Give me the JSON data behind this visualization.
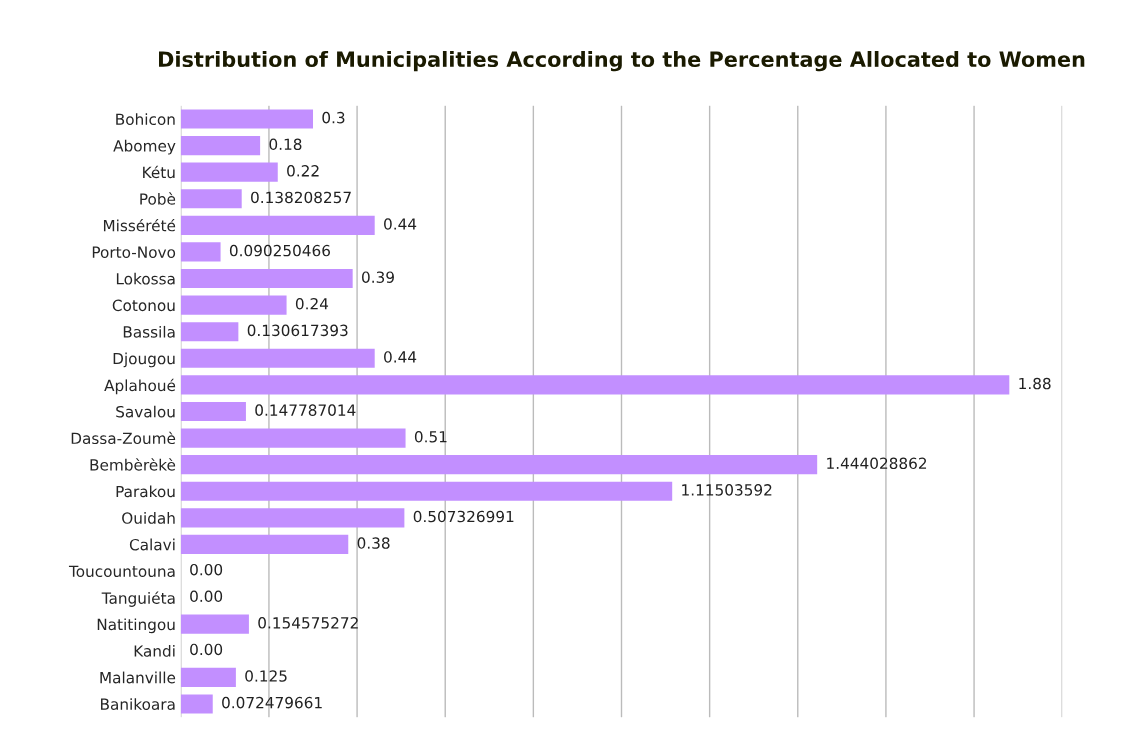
{
  "chart_data": {
    "type": "bar",
    "orientation": "horizontal",
    "title": "Distribution of Municipalities According to the Percentage Allocated to Women",
    "categories": [
      "Bohicon",
      "Abomey",
      "Kétu",
      "Pobè",
      "Missérété",
      "Porto-Novo",
      "Lokossa",
      "Cotonou",
      "Bassila",
      "Djougou",
      "Aplahoué",
      "Savalou",
      "Dassa-Zoumè",
      "Bembèrèkè",
      "Parakou",
      "Ouidah",
      "Calavi",
      "Toucountouna",
      "Tanguiéta",
      "Natitingou",
      "Kandi",
      "Malanville",
      "Banikoara"
    ],
    "values": [
      0.3,
      0.18,
      0.22,
      0.138208257,
      0.44,
      0.090250466,
      0.39,
      0.24,
      0.130617393,
      0.44,
      1.88,
      0.147787014,
      0.51,
      1.444028862,
      1.11503592,
      0.507326991,
      0.38,
      0,
      0,
      0.154575272,
      0,
      0.125,
      0.072479661
    ],
    "value_labels": [
      "0.3",
      "0.18",
      "0.22",
      "0.138208257",
      "0.44",
      "0.090250466",
      "0.39",
      "0.24",
      "0.130617393",
      "0.44",
      "1.88",
      "0.147787014",
      "0.51",
      "1.444028862",
      "1.11503592",
      "0.507326991",
      "0.38",
      "0.00",
      "0.00",
      "0.154575272",
      "0.00",
      "0.125",
      "0.072479661"
    ],
    "color": "#c28fff",
    "xlim": [
      0,
      2
    ],
    "xticks": [
      {
        "value": 0,
        "label": null
      },
      {
        "value": 0.2,
        "label": null
      },
      {
        "value": 0.4,
        "label": null
      },
      {
        "value": 0.6,
        "label": null
      },
      {
        "value": 0.8,
        "label": null
      },
      {
        "value": 1.0,
        "label": null
      },
      {
        "value": 1.2,
        "label": null
      },
      {
        "value": 1.4,
        "label": null
      },
      {
        "value": 1.6,
        "label": null
      },
      {
        "value": 1.8,
        "label": null
      },
      {
        "value": 2.0,
        "label": null
      }
    ],
    "tick_labels": "y",
    "grid": "x"
  }
}
